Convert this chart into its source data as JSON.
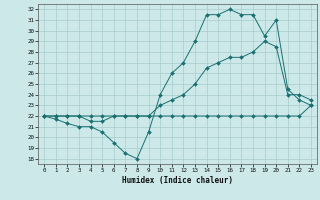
{
  "xlabel": "Humidex (Indice chaleur)",
  "background_color": "#cce8e8",
  "line_color": "#1a7070",
  "xlim": [
    -0.5,
    23.5
  ],
  "ylim": [
    17.5,
    32.5
  ],
  "xticks": [
    0,
    1,
    2,
    3,
    4,
    5,
    6,
    7,
    8,
    9,
    10,
    11,
    12,
    13,
    14,
    15,
    16,
    17,
    18,
    19,
    20,
    21,
    22,
    23
  ],
  "yticks": [
    18,
    19,
    20,
    21,
    22,
    23,
    24,
    25,
    26,
    27,
    28,
    29,
    30,
    31,
    32
  ],
  "line1_x": [
    0,
    1,
    2,
    3,
    4,
    5,
    6,
    7,
    8,
    9,
    10,
    11,
    12,
    13,
    14,
    15,
    16,
    17,
    18,
    19,
    20,
    21,
    22,
    23
  ],
  "line1_y": [
    22,
    21.7,
    21.3,
    21.0,
    21.0,
    20.5,
    19.5,
    18.5,
    18.0,
    20.5,
    24.0,
    26.0,
    27.0,
    29.0,
    31.5,
    31.5,
    32.0,
    31.5,
    31.5,
    29.5,
    31.0,
    24.5,
    23.5,
    23.0
  ],
  "line2_x": [
    0,
    1,
    2,
    3,
    4,
    5,
    6,
    7,
    8,
    9,
    10,
    11,
    12,
    13,
    14,
    15,
    16,
    17,
    18,
    19,
    20,
    21,
    22,
    23
  ],
  "line2_y": [
    22,
    22,
    22,
    22,
    21.5,
    21.5,
    22,
    22,
    22,
    22,
    23,
    23.5,
    24,
    25,
    26.5,
    27,
    27.5,
    27.5,
    28,
    29,
    28.5,
    24,
    24,
    23.5
  ],
  "line3_x": [
    0,
    1,
    2,
    3,
    4,
    5,
    6,
    7,
    8,
    9,
    10,
    11,
    12,
    13,
    14,
    15,
    16,
    17,
    18,
    19,
    20,
    21,
    22,
    23
  ],
  "line3_y": [
    22,
    22,
    22,
    22,
    22,
    22,
    22,
    22,
    22,
    22,
    22,
    22,
    22,
    22,
    22,
    22,
    22,
    22,
    22,
    22,
    22,
    22,
    22,
    23
  ]
}
